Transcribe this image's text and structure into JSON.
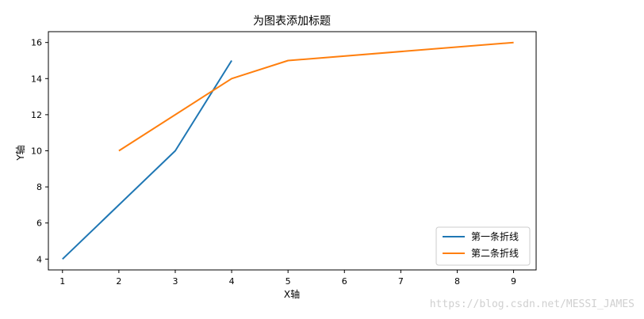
{
  "chart_data": {
    "type": "line",
    "title": "为图表添加标题",
    "xlabel": "X轴",
    "ylabel": "Y轴",
    "xlim": [
      0.75,
      9.4
    ],
    "ylim": [
      3.4,
      16.6
    ],
    "xticks": [
      1,
      2,
      3,
      4,
      5,
      6,
      7,
      8,
      9
    ],
    "yticks": [
      4,
      6,
      8,
      10,
      12,
      14,
      16
    ],
    "grid": false,
    "legend_position": "lower-right",
    "series": [
      {
        "name": "第一条折线",
        "color": "#1f77b4",
        "x": [
          1,
          2,
          3,
          4
        ],
        "y": [
          4,
          7,
          10,
          15
        ]
      },
      {
        "name": "第二条折线",
        "color": "#ff7f0e",
        "x": [
          2,
          4,
          5,
          9
        ],
        "y": [
          10,
          14,
          15,
          16
        ]
      }
    ]
  },
  "watermark": "https://blog.csdn.net/MESSI_JAMES"
}
